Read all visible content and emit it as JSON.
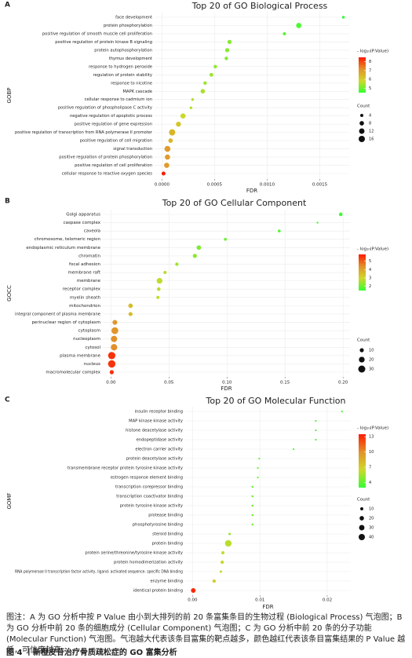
{
  "chart_data": [
    {
      "type": "bubble",
      "panel": "A",
      "title": "Top 20 of GO Biological Process",
      "ylabel": "GOBP",
      "xlabel": "FDR",
      "categories": [
        "face development",
        "protein phosphorylation",
        "positive regulation of smooth muscle cell proliferation",
        "positive regulation of protein kinase B signaling",
        "protein autophosphorylation",
        "thymus development",
        "response to hydrogen peroxide",
        "regulation of protein stability",
        "response to nicotine",
        "MAPK cascade",
        "cellular response to cadmium ion",
        "positive regulation of phospholipase C activity",
        "negative regulation of apoptotic process",
        "positive regulation of gene expression",
        "positive regulation of transcription from RNA polymerase II promoter",
        "positive regulation of cell migration",
        "signal transduction",
        "positive regulation of protein phosphorylation",
        "positive regulation of cell proliferation",
        "cellular response to reactive oxygen species"
      ],
      "values": [
        0.001724,
        0.0013,
        0.001164,
        0.000642,
        0.00062,
        0.000612,
        0.000507,
        0.00047,
        0.00041,
        0.000388,
        0.000291,
        0.000276,
        0.0002,
        0.000157,
        9.7e-05,
        8.2e-05,
        5.2e-05,
        5.2e-05,
        4.5e-05,
        1.5e-05
      ],
      "counts": [
        3,
        11,
        4,
        7,
        7,
        5,
        5,
        6,
        5,
        8,
        3,
        3,
        11,
        10,
        16,
        8,
        14,
        11,
        11,
        6
      ],
      "log_p": [
        4.5,
        4.7,
        4.8,
        5.2,
        5.2,
        5.2,
        5.3,
        5.4,
        5.4,
        5.5,
        5.6,
        5.6,
        5.8,
        6.2,
        6.5,
        6.5,
        7.0,
        7.0,
        7.0,
        8.5
      ],
      "xlim": [
        -7e-05,
        0.00178
      ],
      "xticks": [
        {
          "value": 0,
          "label": "0.0000"
        },
        0.0005,
        {
          "value": 0.001,
          "label": "0.0010"
        },
        0.0015
      ],
      "grid": true,
      "color_label": "- log₁₀(P.Value)",
      "clim": [
        4.5,
        8.5
      ],
      "cticks": [
        5,
        6,
        7,
        8
      ],
      "colormap": [
        "#33ff33",
        "#cfd82a",
        "#e2922a",
        "#ff1a00"
      ],
      "size_label": "Count",
      "size_ticks": [
        4,
        8,
        12,
        16
      ]
    },
    {
      "type": "bubble",
      "panel": "B",
      "title": "Top 20 of GO Cellular Component",
      "ylabel": "GOCC",
      "xlabel": "FDR",
      "categories": [
        "Golgi apparatus",
        "caspase complex",
        "caveola",
        "chromosome, telomeric region",
        "endoplasmic reticulum membrane",
        "chromatin",
        "focal adhesion",
        "membrane raft",
        "membrane",
        "receptor complex",
        "myelin sheath",
        "mitochondrion",
        "integral component of plasma membrane",
        "perinuclear region of cytoplasm",
        "cytoplasm",
        "nucleoplasm",
        "cytosol",
        "plasma membrane",
        "nucleus",
        "macromolecular complex"
      ],
      "values": [
        0.198,
        0.178,
        0.145,
        0.0986,
        0.0757,
        0.0723,
        0.0568,
        0.0466,
        0.0419,
        0.0412,
        0.0405,
        0.0169,
        0.0169,
        0.0034,
        0.0034,
        0.0027,
        0.0027,
        0.0007,
        0.0007,
        0.0007
      ],
      "counts": [
        8,
        2,
        5,
        5,
        12,
        10,
        7,
        6,
        20,
        8,
        6,
        12,
        10,
        14,
        28,
        24,
        25,
        32,
        33,
        10
      ],
      "log_p": [
        1.6,
        1.7,
        1.8,
        2.0,
        2.2,
        2.3,
        2.5,
        2.7,
        2.8,
        2.8,
        2.8,
        3.5,
        3.5,
        4.3,
        4.3,
        4.4,
        4.4,
        5.5,
        5.5,
        5.6
      ],
      "xlim": [
        -0.007,
        0.206
      ],
      "xticks": [
        {
          "value": 0,
          "label": "0.00"
        },
        0.05,
        {
          "value": 0.1,
          "label": "0.10"
        },
        0.15,
        {
          "value": 0.2,
          "label": "0.20"
        }
      ],
      "grid": true,
      "color_label": "- log₁₀(P.Value)",
      "clim": [
        1.5,
        5.8
      ],
      "cticks": [
        2,
        3,
        4,
        5
      ],
      "colormap": [
        "#33ff33",
        "#cfd82a",
        "#e2922a",
        "#ff1a00"
      ],
      "size_label": "Count",
      "size_ticks": [
        10,
        20,
        30
      ]
    },
    {
      "type": "bubble",
      "panel": "C",
      "title": "Top 20 of GO Molecular Function",
      "ylabel": "GOMF",
      "xlabel": "FDR",
      "categories": [
        "insulin receptor binding",
        "MAP kinase kinase activity",
        "histone deacetylase activity",
        "endopeptidase activity",
        "electron carrier activity",
        "protein deacetylase activity",
        "transmembrane receptor protein tyrosine kinase activity",
        "estrogen response element binding",
        "transcription corepressor binding",
        "transcription coactivator binding",
        "protein tyrosine kinase activity",
        "protease binding",
        "phosphotyrosine binding",
        "steroid binding",
        "protein binding",
        "protein serine/threonine/tyrosine kinase activity",
        "protein homodimerization activity",
        "RNA polymerase II transcription factor activity, ligand- activated sequence- specific DNA binding",
        "enzyme binding",
        "identical protein binding"
      ],
      "values": [
        0.0222,
        0.0183,
        0.0183,
        0.0183,
        0.015,
        0.0099,
        0.0097,
        0.0097,
        0.0089,
        0.0089,
        0.0089,
        0.0089,
        0.0089,
        0.0055,
        0.0053,
        0.0045,
        0.0044,
        0.0042,
        0.0032,
        0.0001
      ],
      "counts": [
        3,
        3,
        3,
        3,
        3,
        3,
        3,
        3,
        4,
        4,
        4,
        4,
        4,
        6,
        44,
        10,
        12,
        6,
        12,
        22
      ],
      "log_p": [
        3.3,
        3.5,
        3.5,
        3.5,
        3.7,
        4.2,
        4.2,
        4.2,
        4.4,
        4.4,
        4.4,
        4.4,
        4.4,
        5.3,
        6.0,
        6.2,
        6.3,
        6.3,
        7.0,
        13.0
      ],
      "xlim": [
        -0.0011,
        0.0235
      ],
      "xticks": [
        {
          "value": 0,
          "label": "0.00"
        },
        0.01,
        0.02
      ],
      "grid": true,
      "color_label": "- log₁₀(P.Value)",
      "clim": [
        3,
        13.5
      ],
      "cticks": [
        4,
        7,
        10,
        13
      ],
      "colormap": [
        "#33ff33",
        "#cfd82a",
        "#e2922a",
        "#ff1a00"
      ],
      "size_label": "Count",
      "size_ticks": [
        10,
        20,
        30,
        40
      ]
    }
  ],
  "caption": "图注：A 为 GO 分析中按 P Value 由小到大排列的前 20 条富集条目的生物过程 (Biological Process) 气泡图；B 为 GO 分析中前 20 条的细胞成分 (Cellular Component) 气泡图；C 为 GO 分析中前 20 条的分子功能 (Molecular Function) 气泡图。气泡越大代表该条目富集的靶点越多，颜色越红代表该条目富集结果的 P Value 越低，可信度越高。",
  "figure_title": "图 4 丨新橙皮苷治疗骨质疏松症的 GO 富集分析"
}
